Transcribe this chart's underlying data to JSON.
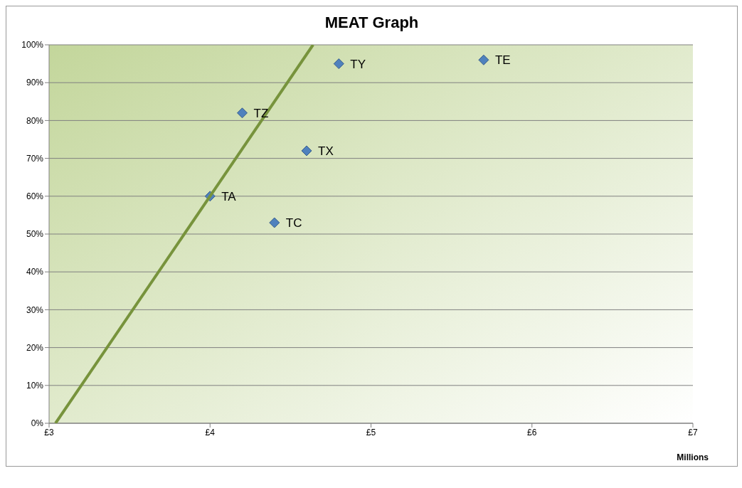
{
  "chart_data": {
    "type": "scatter",
    "title": "MEAT Graph",
    "xlabel": "Millions",
    "series": [
      {
        "type": "scatter",
        "color": "#4f81bd",
        "x": [
          4.2,
          4.6,
          4.8,
          5.7,
          4.0,
          4.4
        ],
        "values": [
          82,
          72,
          95,
          96,
          60,
          53
        ],
        "marker": "diamond"
      },
      {
        "type": "line",
        "color": "#77933c",
        "x": [
          3.04,
          4.64
        ],
        "values": [
          0,
          100
        ],
        "marker": "none"
      }
    ],
    "annotations": [
      {
        "text": "TZ",
        "x": 4.2,
        "y": 82
      },
      {
        "text": "TX",
        "x": 4.6,
        "y": 72
      },
      {
        "text": "TY",
        "x": 4.8,
        "y": 95
      },
      {
        "text": "TE",
        "x": 5.7,
        "y": 96
      },
      {
        "text": "TA",
        "x": 4.0,
        "y": 60
      },
      {
        "text": "TC",
        "x": 4.4,
        "y": 53
      }
    ],
    "xlim": [
      3,
      7
    ],
    "xticks": [
      {
        "value": 3,
        "label": "£3"
      },
      {
        "value": 4,
        "label": "£4"
      },
      {
        "value": 5,
        "label": "£5"
      },
      {
        "value": 6,
        "label": "£6"
      },
      {
        "value": 7,
        "label": "£7"
      }
    ],
    "ylim": [
      0,
      100
    ],
    "yticks": [
      {
        "value": 0,
        "label": "0%"
      },
      {
        "value": 10,
        "label": "10%"
      },
      {
        "value": 20,
        "label": "20%"
      },
      {
        "value": 30,
        "label": "30%"
      },
      {
        "value": 40,
        "label": "40%"
      },
      {
        "value": 50,
        "label": "50%"
      },
      {
        "value": 60,
        "label": "60%"
      },
      {
        "value": 70,
        "label": "70%"
      },
      {
        "value": 80,
        "label": "80%"
      },
      {
        "value": 90,
        "label": "90%"
      },
      {
        "value": 100,
        "label": "100%"
      }
    ],
    "grid": "y",
    "legend": false
  }
}
